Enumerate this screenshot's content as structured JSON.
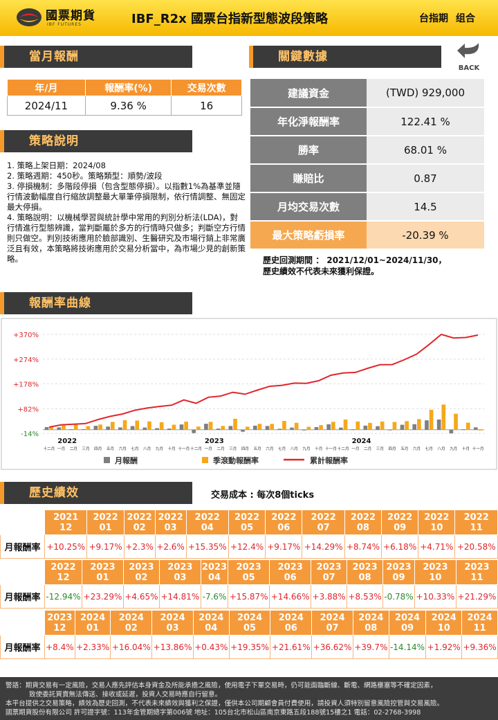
{
  "header": {
    "logo_text": "國票期貨",
    "logo_sub": "IBF FUTURES",
    "title": "IBF_R2x 國票台指新型態波段策略",
    "tag1": "台指期",
    "tag2": "组合"
  },
  "monthly": {
    "section_title": "當月報酬",
    "headers": [
      "年/月",
      "報酬率(%)",
      "交易次數"
    ],
    "row": [
      "2024/11",
      "9.36 %",
      "16"
    ]
  },
  "key_data": {
    "section_title": "關鍵數據",
    "rows": [
      {
        "label": "建議資金",
        "value": "(TWD) 929,000"
      },
      {
        "label": "年化淨報酬率",
        "value": "122.41 %"
      },
      {
        "label": "勝率",
        "value": "68.01 %"
      },
      {
        "label": "賺賠比",
        "value": "0.87"
      },
      {
        "label": "月均交易次數",
        "value": "14.5"
      },
      {
        "label": "最大策略虧損率",
        "value": "-20.39 %"
      }
    ],
    "note1": "歷史回測期間 ： 2021/12/01~2024/11/30，",
    "note2": "歷史績效不代表未來獲利保證。"
  },
  "back": {
    "label": "BACK"
  },
  "strategy": {
    "section_title": "策略說明",
    "lines": [
      "1. 策略上架日期：2024/08",
      "2. 策略週期：450秒。策略類型：順勢/波段",
      "3. 停損機制：多階段停損（包含型態停損）。以指數1%為基準並隨行情波動幅度自行縮放調整最大單筆停損限制，依行情調整、無固定最大停損。",
      "4. 策略說明：以機械學習與統計學中常用的判別分析法(LDA)，對行情進行型態辨識，當判斷屬於多方的行情時只做多；判斷空方行情則只做空。判別技術應用於臉部識別、生醫研究及市場行銷上非常廣泛且有效，本策略將技術應用於交易分析當中，為市場少見的創新策略。"
    ]
  },
  "chart_section_title": "報酬率曲線",
  "chart_data": {
    "type": "bar+line",
    "y_ticks": [
      "+370%",
      "+274%",
      "+178%",
      "+82%",
      "-14%"
    ],
    "y_tick_values": [
      370,
      274,
      178,
      82,
      -14
    ],
    "ylim": [
      -14,
      370
    ],
    "months": [
      "十二月",
      "一月",
      "二月",
      "三月",
      "四月",
      "五月",
      "六月",
      "七月",
      "八月",
      "九月",
      "十月",
      "十一月",
      "十二月",
      "一月",
      "二月",
      "三月",
      "四月",
      "五月",
      "六月",
      "七月",
      "八月",
      "九月",
      "十月",
      "十一月",
      "十二月",
      "一月",
      "二月",
      "三月",
      "四月",
      "五月",
      "六月",
      "七月",
      "八月",
      "九月",
      "十月",
      "十一月"
    ],
    "year_labels": [
      {
        "label": "2022",
        "index": 1
      },
      {
        "label": "2023",
        "index": 13
      },
      {
        "label": "2024",
        "index": 25
      }
    ],
    "series": [
      {
        "name": "月報酬",
        "color": "#7f7f7f",
        "values": [
          10.25,
          9.17,
          2.3,
          2.6,
          15.35,
          12.4,
          9.17,
          14.29,
          8.74,
          6.18,
          4.71,
          20.58,
          -12.94,
          23.29,
          4.65,
          14.81,
          -7.6,
          15.87,
          14.66,
          3.88,
          8.53,
          -0.78,
          10.33,
          21.29,
          8.4,
          2.33,
          16.04,
          13.86,
          0.43,
          19.35,
          21.61,
          36.62,
          39.7,
          -14.14,
          1.92,
          9.36
        ]
      },
      {
        "name": "季滾動報酬率",
        "color": "#f5a81c",
        "values": [
          10.3,
          19.4,
          21.7,
          14.1,
          20.3,
          30.4,
          36.9,
          35.8,
          32.2,
          29.2,
          19.6,
          31.5,
          12.4,
          30.9,
          14.9,
          42.7,
          11.9,
          23.1,
          22.9,
          34.4,
          27.1,
          11.6,
          18.1,
          30.8,
          40.0,
          32.1,
          26.8,
          32.2,
          30.3,
          33.6,
          41.4,
          77.6,
          97.9,
          62.2,
          27.5,
          -2.9
        ]
      },
      {
        "name": "累計報酬率",
        "color": "#e0262b",
        "values": [
          10.25,
          19.4,
          21.7,
          24.3,
          39.7,
          52.1,
          61.3,
          75.6,
          84.3,
          90.5,
          95.2,
          115.8,
          102.8,
          126.1,
          130.8,
          145.6,
          138.0,
          153.8,
          168.5,
          172.4,
          180.9,
          180.1,
          190.4,
          211.7,
          220.1,
          222.5,
          238.5,
          252.4,
          252.8,
          272.1,
          293.8,
          330.4,
          370.1,
          356.0,
          357.9,
          367.2
        ]
      }
    ]
  },
  "history": {
    "section_title": "歷史績效",
    "cost_note": "交易成本 : 每次8個ticks",
    "row_label": "月報酬率",
    "blocks": [
      {
        "years": [
          "2021",
          "2022",
          "2022",
          "2022",
          "2022",
          "2022",
          "2022",
          "2022",
          "2022",
          "2022",
          "2022",
          "2022"
        ],
        "months": [
          "12",
          "01",
          "02",
          "03",
          "04",
          "05",
          "06",
          "07",
          "08",
          "09",
          "10",
          "11"
        ],
        "values": [
          "+10.25%",
          "+9.17%",
          "+2.3%",
          "+2.6%",
          "+15.35%",
          "+12.4%",
          "+9.17%",
          "+14.29%",
          "+8.74%",
          "+6.18%",
          "+4.71%",
          "+20.58%"
        ]
      },
      {
        "years": [
          "2022",
          "2023",
          "2023",
          "2023",
          "2023",
          "2023",
          "2023",
          "2023",
          "2023",
          "2023",
          "2023",
          "2023"
        ],
        "months": [
          "12",
          "01",
          "02",
          "03",
          "04",
          "05",
          "06",
          "07",
          "08",
          "09",
          "10",
          "11"
        ],
        "values": [
          "-12.94%",
          "+23.29%",
          "+4.65%",
          "+14.81%",
          "-7.6%",
          "+15.87%",
          "+14.66%",
          "+3.88%",
          "+8.53%",
          "-0.78%",
          "+10.33%",
          "+21.29%"
        ]
      },
      {
        "years": [
          "2023",
          "2024",
          "2024",
          "2024",
          "2024",
          "2024",
          "2024",
          "2024",
          "2024",
          "2024",
          "2024",
          "2024"
        ],
        "months": [
          "12",
          "01",
          "02",
          "03",
          "04",
          "05",
          "06",
          "07",
          "08",
          "09",
          "10",
          "11"
        ],
        "values": [
          "+8.4%",
          "+2.33%",
          "+16.04%",
          "+13.86%",
          "+0.43%",
          "+19.35%",
          "+21.61%",
          "+36.62%",
          "+39.7%",
          "-14.14%",
          "+1.92%",
          "+9.36%"
        ]
      }
    ]
  },
  "footer": {
    "line1": "警語：期貨交易有一定風險，交易人應先評估本身資金及所能承擔之風險，使用電子下單交易時，仍可能面臨斷線、斷電、網路壅塞等不確定因素，",
    "line2": "致使委託買賣無法傳送、接收或延遲，投資人交易時應自行留意。",
    "line3": "本平台提供之交易策略，績效為歷史回測，不代表未來績效與獲利之保證，僅供本公司期顧會員付費使用，請投資人須特別留意風險控管與交易風險。",
    "line4": "國票期貨股份有限公司 許可證字號：113年金管期總字第006號 地址：105台北市松山區南京東路五段188號15樓之1 電話：02-2768-3998"
  }
}
